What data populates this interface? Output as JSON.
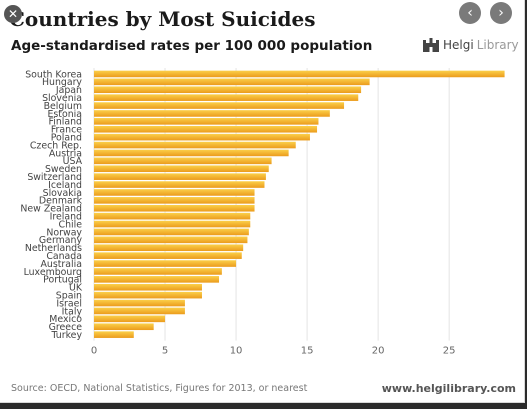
{
  "title": "Countries by Most Suicides",
  "subtitle": "Age-standardised rates per 100 000 population",
  "logo": {
    "name": "Helgi",
    "suffix": "Library",
    "icon": "castle-icon"
  },
  "source": "Source: OECD, National Statistics, Figures for 2013, or nearest",
  "website": "www.helgilibrary.com",
  "controls": {
    "close_icon": "close-icon",
    "prev_icon": "chevron-left-icon",
    "next_icon": "chevron-right-icon"
  },
  "colors": {
    "bar_light": "#f9c52e",
    "bar_dark": "#e8941a",
    "accent": "#f0a820"
  },
  "chart_data": {
    "type": "bar",
    "orientation": "horizontal",
    "title": "Countries by Most Suicides",
    "subtitle": "Age-standardised rates per 100 000 population",
    "categories": [
      "South Korea",
      "Hungary",
      "Japan",
      "Slovenia",
      "Belgium",
      "Estonia",
      "Finland",
      "France",
      "Poland",
      "Czech Rep.",
      "Austria",
      "USA",
      "Sweden",
      "Switzerland",
      "Iceland",
      "Slovakia",
      "Denmark",
      "New Zealand",
      "Ireland",
      "Chile",
      "Norway",
      "Germany",
      "Netherlands",
      "Canada",
      "Australia",
      "Luxembourg",
      "Portugal",
      "UK",
      "Spain",
      "Israel",
      "Italy",
      "Mexico",
      "Greece",
      "Turkey"
    ],
    "values": [
      28.9,
      19.4,
      18.8,
      18.6,
      17.6,
      16.6,
      15.8,
      15.7,
      15.2,
      14.2,
      13.7,
      12.5,
      12.3,
      12.1,
      12.0,
      11.3,
      11.3,
      11.3,
      11.0,
      11.0,
      10.9,
      10.8,
      10.5,
      10.4,
      10.0,
      9.0,
      8.8,
      7.6,
      7.6,
      6.4,
      6.4,
      5.0,
      4.2,
      2.8
    ],
    "xticks": [
      0,
      5,
      10,
      15,
      20,
      25
    ],
    "xlim": [
      0,
      29
    ],
    "grid": true
  }
}
